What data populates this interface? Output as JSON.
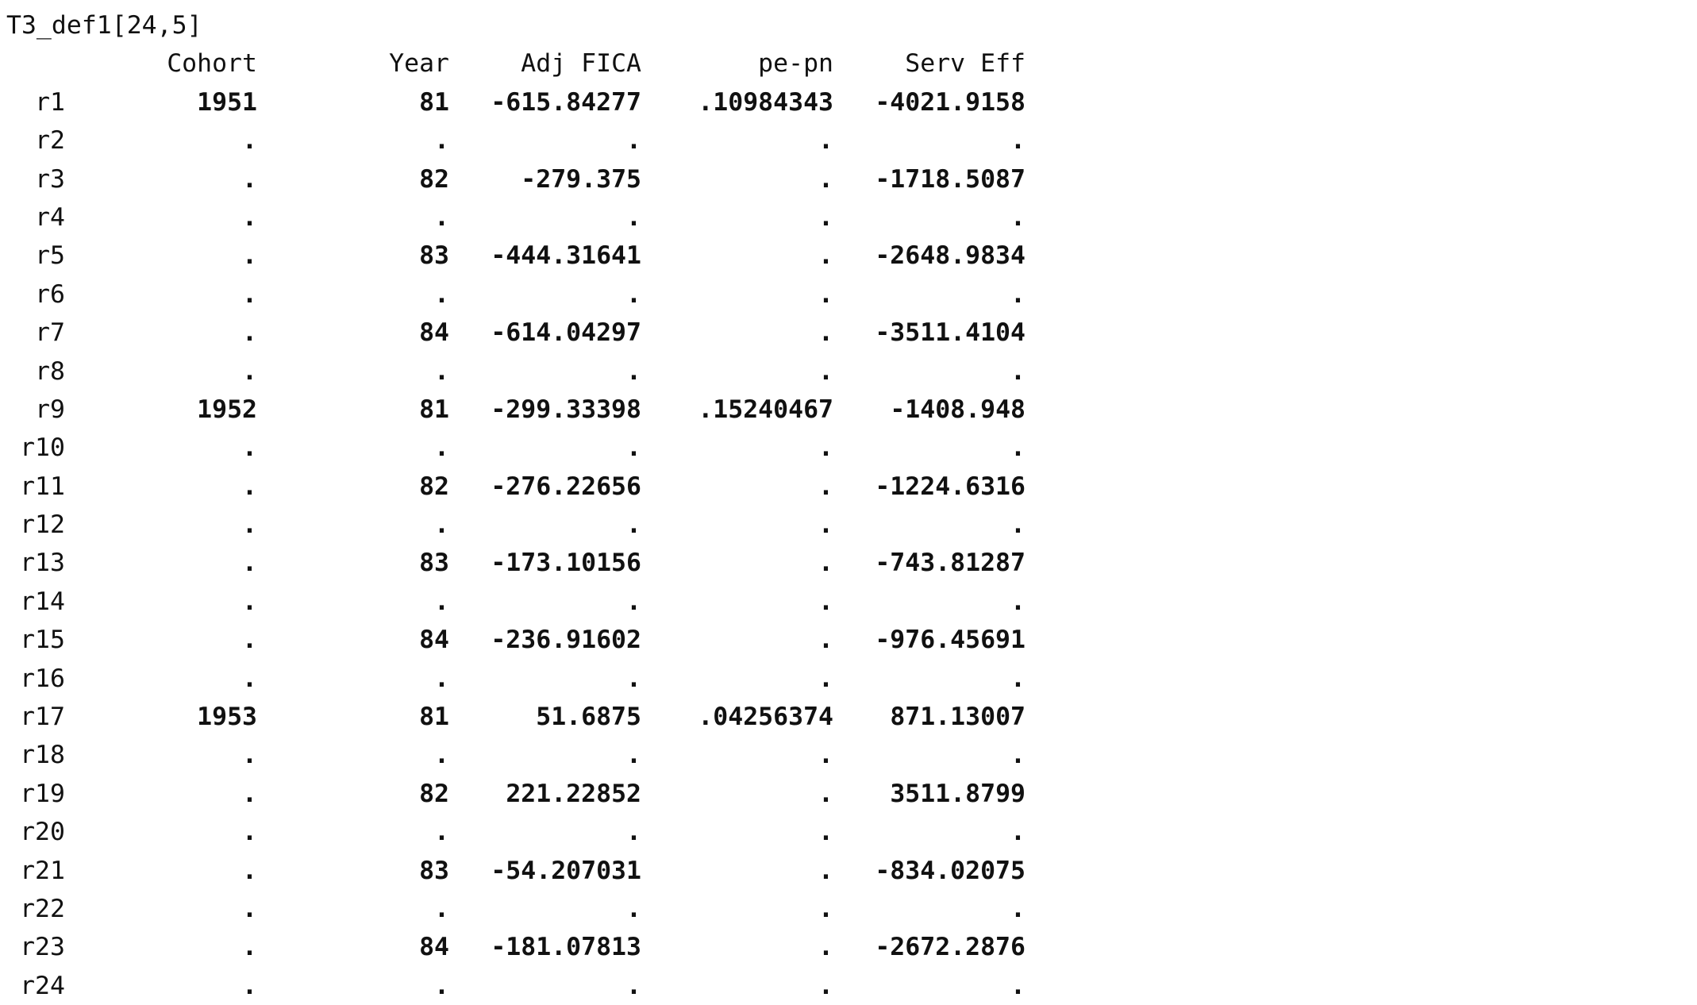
{
  "matrix": {
    "title": "T3_def1[24,5]",
    "columns": [
      "Cohort",
      "Year",
      "Adj FICA",
      "pe-pn",
      "Serv Eff"
    ],
    "rows": [
      {
        "name": "r1",
        "values": [
          "1951",
          "81",
          "-615.84277",
          ".10984343",
          "-4021.9158"
        ]
      },
      {
        "name": "r2",
        "values": [
          ".",
          ".",
          ".",
          ".",
          "."
        ]
      },
      {
        "name": "r3",
        "values": [
          ".",
          "82",
          "-279.375",
          ".",
          "-1718.5087"
        ]
      },
      {
        "name": "r4",
        "values": [
          ".",
          ".",
          ".",
          ".",
          "."
        ]
      },
      {
        "name": "r5",
        "values": [
          ".",
          "83",
          "-444.31641",
          ".",
          "-2648.9834"
        ]
      },
      {
        "name": "r6",
        "values": [
          ".",
          ".",
          ".",
          ".",
          "."
        ]
      },
      {
        "name": "r7",
        "values": [
          ".",
          "84",
          "-614.04297",
          ".",
          "-3511.4104"
        ]
      },
      {
        "name": "r8",
        "values": [
          ".",
          ".",
          ".",
          ".",
          "."
        ]
      },
      {
        "name": "r9",
        "values": [
          "1952",
          "81",
          "-299.33398",
          ".15240467",
          "-1408.948"
        ]
      },
      {
        "name": "r10",
        "values": [
          ".",
          ".",
          ".",
          ".",
          "."
        ]
      },
      {
        "name": "r11",
        "values": [
          ".",
          "82",
          "-276.22656",
          ".",
          "-1224.6316"
        ]
      },
      {
        "name": "r12",
        "values": [
          ".",
          ".",
          ".",
          ".",
          "."
        ]
      },
      {
        "name": "r13",
        "values": [
          ".",
          "83",
          "-173.10156",
          ".",
          "-743.81287"
        ]
      },
      {
        "name": "r14",
        "values": [
          ".",
          ".",
          ".",
          ".",
          "."
        ]
      },
      {
        "name": "r15",
        "values": [
          ".",
          "84",
          "-236.91602",
          ".",
          "-976.45691"
        ]
      },
      {
        "name": "r16",
        "values": [
          ".",
          ".",
          ".",
          ".",
          "."
        ]
      },
      {
        "name": "r17",
        "values": [
          "1953",
          "81",
          "51.6875",
          ".04256374",
          "871.13007"
        ]
      },
      {
        "name": "r18",
        "values": [
          ".",
          ".",
          ".",
          ".",
          "."
        ]
      },
      {
        "name": "r19",
        "values": [
          ".",
          "82",
          "221.22852",
          ".",
          "3511.8799"
        ]
      },
      {
        "name": "r20",
        "values": [
          ".",
          ".",
          ".",
          ".",
          "."
        ]
      },
      {
        "name": "r21",
        "values": [
          ".",
          "83",
          "-54.207031",
          ".",
          "-834.02075"
        ]
      },
      {
        "name": "r22",
        "values": [
          ".",
          ".",
          ".",
          ".",
          "."
        ]
      },
      {
        "name": "r23",
        "values": [
          ".",
          "84",
          "-181.07813",
          ".",
          "-2672.2876"
        ]
      },
      {
        "name": "r24",
        "values": [
          ".",
          ".",
          ".",
          ".",
          "."
        ]
      }
    ]
  }
}
